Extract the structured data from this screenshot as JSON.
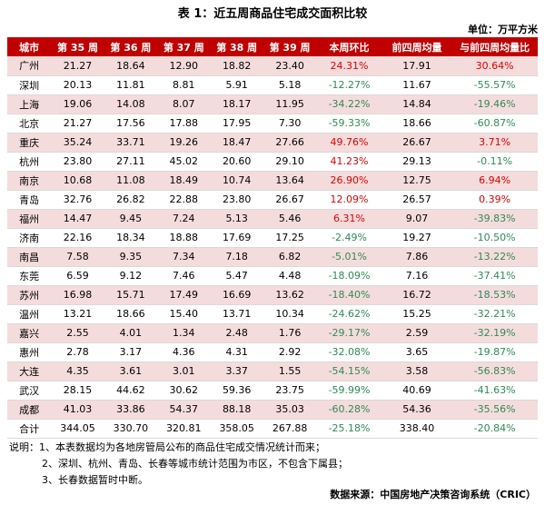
{
  "title": "表 1：近五周商品住宅成交面积比较",
  "unit": "单位：万平方米",
  "headers": [
    "城市",
    "第 35 周",
    "第 36 周",
    "第 37 周",
    "第 38 周",
    "第 39 周",
    "本周环比",
    "前四周均量",
    "与前四周均量比"
  ],
  "rows": [
    {
      "city": "广州",
      "w35": "21.27",
      "w36": "18.64",
      "w37": "12.90",
      "w38": "18.82",
      "w39": "23.40",
      "wow": "24.31%",
      "avg4": "17.91",
      "vs_avg": "30.64%"
    },
    {
      "city": "深圳",
      "w35": "20.13",
      "w36": "11.81",
      "w37": "8.81",
      "w38": "5.91",
      "w39": "5.18",
      "wow": "-12.27%",
      "avg4": "11.67",
      "vs_avg": "-55.57%"
    },
    {
      "city": "上海",
      "w35": "19.06",
      "w36": "14.08",
      "w37": "8.07",
      "w38": "18.17",
      "w39": "11.95",
      "wow": "-34.22%",
      "avg4": "14.84",
      "vs_avg": "-19.46%"
    },
    {
      "city": "北京",
      "w35": "21.27",
      "w36": "17.56",
      "w37": "17.88",
      "w38": "17.95",
      "w39": "7.30",
      "wow": "-59.33%",
      "avg4": "18.66",
      "vs_avg": "-60.87%"
    },
    {
      "city": "重庆",
      "w35": "35.24",
      "w36": "33.71",
      "w37": "19.26",
      "w38": "18.47",
      "w39": "27.66",
      "wow": "49.76%",
      "avg4": "26.67",
      "vs_avg": "3.71%"
    },
    {
      "city": "杭州",
      "w35": "23.80",
      "w36": "27.11",
      "w37": "45.02",
      "w38": "20.60",
      "w39": "29.10",
      "wow": "41.23%",
      "avg4": "29.13",
      "vs_avg": "-0.11%"
    },
    {
      "city": "南京",
      "w35": "10.68",
      "w36": "11.08",
      "w37": "18.49",
      "w38": "10.74",
      "w39": "13.64",
      "wow": "26.90%",
      "avg4": "12.75",
      "vs_avg": "6.94%"
    },
    {
      "city": "青岛",
      "w35": "32.76",
      "w36": "26.82",
      "w37": "22.88",
      "w38": "23.80",
      "w39": "26.67",
      "wow": "12.09%",
      "avg4": "26.57",
      "vs_avg": "0.39%"
    },
    {
      "city": "福州",
      "w35": "14.47",
      "w36": "9.45",
      "w37": "7.24",
      "w38": "5.13",
      "w39": "5.46",
      "wow": "6.31%",
      "avg4": "9.07",
      "vs_avg": "-39.83%"
    },
    {
      "city": "济南",
      "w35": "22.16",
      "w36": "18.34",
      "w37": "18.88",
      "w38": "17.69",
      "w39": "17.25",
      "wow": "-2.49%",
      "avg4": "19.27",
      "vs_avg": "-10.50%"
    },
    {
      "city": "南昌",
      "w35": "7.58",
      "w36": "9.35",
      "w37": "7.34",
      "w38": "7.18",
      "w39": "6.82",
      "wow": "-5.01%",
      "avg4": "7.86",
      "vs_avg": "-13.22%"
    },
    {
      "city": "东莞",
      "w35": "6.59",
      "w36": "9.12",
      "w37": "7.46",
      "w38": "5.47",
      "w39": "4.48",
      "wow": "-18.09%",
      "avg4": "7.16",
      "vs_avg": "-37.41%"
    },
    {
      "city": "苏州",
      "w35": "16.98",
      "w36": "15.71",
      "w37": "17.49",
      "w38": "16.69",
      "w39": "13.62",
      "wow": "-18.40%",
      "avg4": "16.72",
      "vs_avg": "-18.53%"
    },
    {
      "city": "温州",
      "w35": "13.21",
      "w36": "18.66",
      "w37": "15.40",
      "w38": "13.71",
      "w39": "10.34",
      "wow": "-24.62%",
      "avg4": "15.25",
      "vs_avg": "-32.21%"
    },
    {
      "city": "嘉兴",
      "w35": "2.55",
      "w36": "4.01",
      "w37": "1.34",
      "w38": "2.48",
      "w39": "1.76",
      "wow": "-29.17%",
      "avg4": "2.59",
      "vs_avg": "-32.19%"
    },
    {
      "city": "惠州",
      "w35": "2.78",
      "w36": "3.17",
      "w37": "4.36",
      "w38": "4.31",
      "w39": "2.92",
      "wow": "-32.08%",
      "avg4": "3.65",
      "vs_avg": "-19.87%"
    },
    {
      "city": "大连",
      "w35": "4.35",
      "w36": "3.61",
      "w37": "3.01",
      "w38": "3.37",
      "w39": "1.55",
      "wow": "-54.15%",
      "avg4": "3.58",
      "vs_avg": "-56.83%"
    },
    {
      "city": "武汉",
      "w35": "28.15",
      "w36": "44.62",
      "w37": "30.62",
      "w38": "59.36",
      "w39": "23.75",
      "wow": "-59.99%",
      "avg4": "40.69",
      "vs_avg": "-41.63%"
    },
    {
      "city": "成都",
      "w35": "41.03",
      "w36": "33.86",
      "w37": "54.37",
      "w38": "88.18",
      "w39": "35.03",
      "wow": "-60.28%",
      "avg4": "54.36",
      "vs_avg": "-35.56%"
    },
    {
      "city": "合计",
      "w35": "344.05",
      "w36": "330.70",
      "w37": "320.81",
      "w38": "358.05",
      "w39": "267.88",
      "wow": "-25.18%",
      "avg4": "338.40",
      "vs_avg": "-20.84%"
    }
  ],
  "notes": [
    "说明：1、本表数据均为各地房管局公布的商品住宅成交情况统计而来；",
    "2、深圳、杭州、青岛、长春等城市统计范围为市区，不包含下属县；",
    "3、长春数据暂时中断。"
  ],
  "source": "数据来源：中国房地产决策咨询系统（CRIC）",
  "colors": {
    "header_bg": "#c00000",
    "alt_row": "#f5dcdc",
    "positive": "#e00000",
    "negative": "#2e8b57"
  }
}
